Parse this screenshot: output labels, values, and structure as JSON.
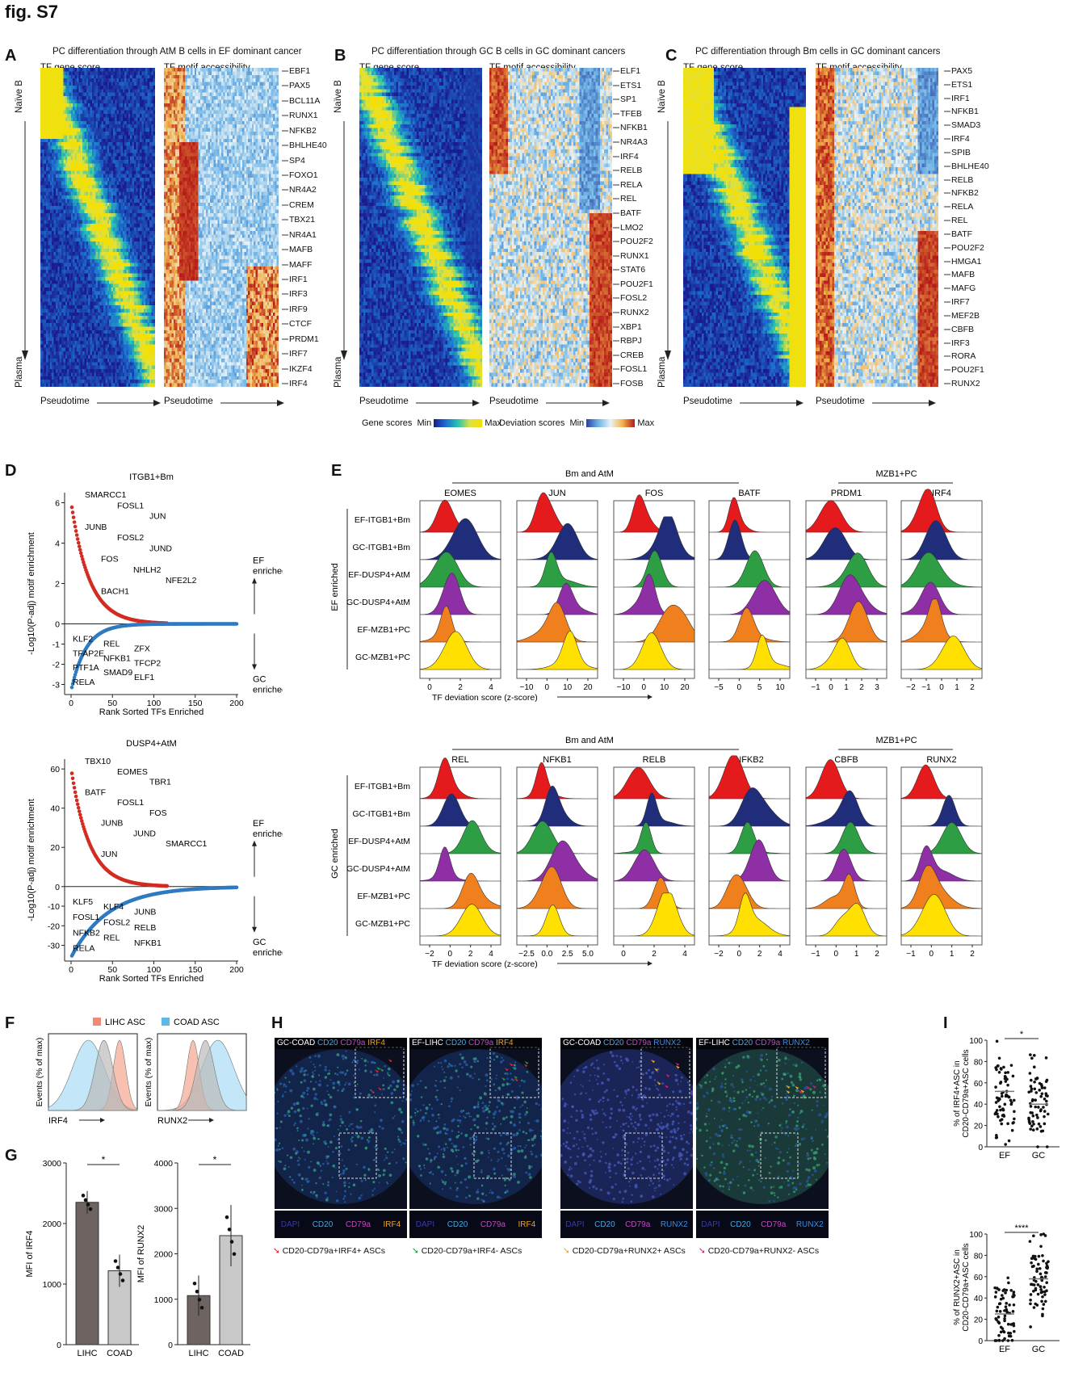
{
  "figure_label": "fig. S7",
  "panelA": {
    "letter": "A",
    "title": "PC differentiation through AtM B cells in EF dominant cancer",
    "left_header": "TF gene score",
    "right_header": "TF motif accessibility",
    "top_label": "Naïve B",
    "bottom_label": "Plasma",
    "x_label": "Pseudotime",
    "genes": [
      "EBF1",
      "PAX5",
      "BCL11A",
      "RUNX1",
      "NFKB2",
      "BHLHE40",
      "SP4",
      "FOXO1",
      "NR4A2",
      "CREM",
      "TBX21",
      "NR4A1",
      "MAFB",
      "MAFF",
      "IRF1",
      "IRF3",
      "IRF9",
      "CTCF",
      "PRDM1",
      "IRF7",
      "IKZF4",
      "IRF4"
    ]
  },
  "panelB": {
    "letter": "B",
    "title": "PC differentiation through GC B cells in GC dominant cancers",
    "left_header": "TF gene score",
    "right_header": "TF motif accessibility",
    "top_label": "Naïve B",
    "bottom_label": "Plasma",
    "x_label": "Pseudotime",
    "genes": [
      "ELF1",
      "ETS1",
      "SP1",
      "TFEB",
      "NFKB1",
      "NR4A3",
      "IRF4",
      "RELB",
      "RELA",
      "REL",
      "BATF",
      "LMO2",
      "POU2F2",
      "RUNX1",
      "STAT6",
      "POU2F1",
      "FOSL2",
      "RUNX2",
      "XBP1",
      "RBPJ",
      "CREB",
      "FOSL1",
      "FOSB"
    ],
    "legend_gene": "Gene scores",
    "legend_dev": "Deviation scores",
    "legend_min": "Min",
    "legend_max": "Max"
  },
  "panelC": {
    "letter": "C",
    "title": "PC differentiation through Bm cells in GC dominant cancers",
    "left_header": "TF gene score",
    "right_header": "TF motif accessibility",
    "top_label": "Naïve B",
    "bottom_label": "Plasma",
    "x_label": "Pseudotime",
    "genes": [
      "PAX5",
      "ETS1",
      "IRF1",
      "NFKB1",
      "SMAD3",
      "IRF4",
      "SPIB",
      "BHLHE40",
      "RELB",
      "NFKB2",
      "RELA",
      "REL",
      "BATF",
      "POU2F2",
      "HMGA1",
      "MAFB",
      "MAFG",
      "IRF7",
      "MEF2B",
      "CBFB",
      "IRF3",
      "RORA",
      "POU2F1",
      "RUNX2"
    ]
  },
  "panelD": {
    "letter": "D",
    "ylabel": "-Log10(P-adj) motif enrichment",
    "xlabel": "Rank Sorted TFs Enriched",
    "ef_label": "EF enriched",
    "gc_label": "GC enriched",
    "top": {
      "title": "ITGB1+Bm",
      "ylim": [
        -3.5,
        6.5
      ],
      "yticks": [
        "6",
        "4",
        "2",
        "0",
        "-1",
        "-2",
        "-3"
      ],
      "xticks": [
        "0",
        "50",
        "100",
        "150",
        "200"
      ],
      "up_labels": [
        "SMARCC1",
        "FOSL1",
        "JUN",
        "JUNB",
        "FOSL2",
        "JUND",
        "FOS",
        "NHLH2",
        "NFE2L2",
        "BACH1"
      ],
      "down_labels": [
        "KLF2",
        "REL",
        "ZFX",
        "TFAP2E",
        "NFKB1",
        "TFCP2",
        "PTF1A",
        "SMAD9",
        "ELF1",
        "RELA"
      ]
    },
    "bottom": {
      "title": "DUSP4+AtM",
      "ylim": [
        -38,
        65
      ],
      "yticks": [
        "60",
        "40",
        "20",
        "0",
        "-10",
        "-20",
        "-30"
      ],
      "xticks": [
        "0",
        "50",
        "100",
        "150",
        "200"
      ],
      "up_labels": [
        "TBX10",
        "EOMES",
        "TBR1",
        "BATF",
        "FOSL1",
        "FOS",
        "JUNB",
        "JUND",
        "SMARCC1",
        "JUN"
      ],
      "down_labels": [
        "KLF5",
        "KLF4",
        "JUNB",
        "FOSL1",
        "FOSL2",
        "RELB",
        "NFKB2",
        "REL",
        "NFKB1",
        "RELA"
      ]
    }
  },
  "panelE": {
    "letter": "E",
    "top_group1": "Bm and AtM",
    "top_group2": "MZB1+PC",
    "bottom_group1": "Bm and AtM",
    "bottom_group2": "MZB1+PC",
    "top_side_label": "EF enriched",
    "bottom_side_label": "GC enriched",
    "xlabel": "TF deviation score (z-score)",
    "rows": [
      "EF-ITGB1+Bm",
      "GC-ITGB1+Bm",
      "EF-DUSP4+AtM",
      "GC-DUSP4+AtM",
      "EF-MZB1+PC",
      "GC-MZB1+PC"
    ],
    "row_colors": [
      "#e41a1c",
      "#1f2d7a",
      "#2e9e44",
      "#8e2fa6",
      "#f07f1e",
      "#ffe000"
    ],
    "top_panels": [
      {
        "name": "EOMES",
        "ticks": [
          "0",
          "2",
          "4"
        ]
      },
      {
        "name": "JUN",
        "ticks": [
          "−10",
          "0",
          "10",
          "20"
        ]
      },
      {
        "name": "FOS",
        "ticks": [
          "−10",
          "0",
          "10",
          "20"
        ]
      },
      {
        "name": "BATF",
        "ticks": [
          "−5",
          "0",
          "5",
          "10"
        ]
      },
      {
        "name": "PRDM1",
        "ticks": [
          "−1",
          "0",
          "1",
          "2",
          "3"
        ]
      },
      {
        "name": "IRF4",
        "ticks": [
          "−2",
          "−1",
          "0",
          "1",
          "2"
        ]
      }
    ],
    "bottom_panels": [
      {
        "name": "REL",
        "ticks": [
          "−2",
          "0",
          "2",
          "4"
        ]
      },
      {
        "name": "NFKB1",
        "ticks": [
          "−2.5",
          "0.0",
          "2.5",
          "5.0"
        ]
      },
      {
        "name": "RELB",
        "ticks": [
          "0",
          "2",
          "4"
        ]
      },
      {
        "name": "NFKB2",
        "ticks": [
          "−2",
          "0",
          "2",
          "4"
        ]
      },
      {
        "name": "CBFB",
        "ticks": [
          "−1",
          "0",
          "1",
          "2"
        ]
      },
      {
        "name": "RUNX2",
        "ticks": [
          "−1",
          "0",
          "1",
          "2"
        ]
      }
    ]
  },
  "panelF": {
    "letter": "F",
    "legend1": "LIHC ASC",
    "legend2": "COAD ASC",
    "legend1_color": "#f08a74",
    "legend2_color": "#5fb8e8",
    "ylabel": "Events (% of max)",
    "x1": "IRF4",
    "x2": "RUNX2"
  },
  "panelG": {
    "letter": "G",
    "chart1": {
      "ylabel": "MFI of IRF4",
      "yticks": [
        "3000",
        "2000",
        "1000",
        "0"
      ],
      "categories": [
        "LIHC",
        "COAD"
      ],
      "values": [
        2350,
        1220
      ],
      "sig": "*"
    },
    "chart2": {
      "ylabel": "MFI of RUNX2",
      "yticks": [
        "4000",
        "3000",
        "2000",
        "1000",
        "0"
      ],
      "categories": [
        "LIHC",
        "COAD"
      ],
      "values": [
        1080,
        2400
      ],
      "sig": "*"
    }
  },
  "panelH": {
    "letter": "H",
    "images": [
      {
        "title_parts": [
          "GC-COAD",
          "CD20",
          "CD79a",
          "IRF4"
        ],
        "channels": [
          "DAPI",
          "CD20",
          "CD79a",
          "IRF4"
        ]
      },
      {
        "title_parts": [
          "EF-LIHC",
          "CD20",
          "CD79a",
          "IRF4"
        ],
        "channels": [
          "DAPI",
          "CD20",
          "CD79a",
          "IRF4"
        ]
      },
      {
        "title_parts": [
          "GC-COAD",
          "CD20",
          "CD79a",
          "RUNX2"
        ],
        "channels": [
          "DAPI",
          "CD20",
          "CD79a",
          "RUNX2"
        ]
      },
      {
        "title_parts": [
          "EF-LIHC",
          "CD20",
          "CD79a",
          "RUNX2"
        ],
        "channels": [
          "DAPI",
          "CD20",
          "CD79a",
          "RUNX2"
        ]
      }
    ],
    "arrow_legends": [
      {
        "text": "CD20-CD79a+IRF4+ ASCs",
        "color": "#e0202a"
      },
      {
        "text": "CD20-CD79a+IRF4- ASCs",
        "color": "#1a9e3a"
      },
      {
        "text": "CD20-CD79a+RUNX2+ ASCs",
        "color": "#f2a81d"
      },
      {
        "text": "CD20-CD79a+RUNX2- ASCs",
        "color": "#e0157e"
      }
    ]
  },
  "panelI": {
    "letter": "I",
    "top": {
      "ylabel": "% of IRF4+ASC in CD20-CD79a+ASC cells",
      "yticks": [
        "100",
        "80",
        "60",
        "40",
        "20",
        "0"
      ],
      "categories": [
        "EF",
        "GC"
      ],
      "sig": "*"
    },
    "bottom": {
      "ylabel": "% of RUNX2+ASC in CD20-CD79a+ASC cells",
      "yticks": [
        "100",
        "80",
        "60",
        "40",
        "20",
        "0"
      ],
      "categories": [
        "EF",
        "GC"
      ],
      "sig": "****"
    }
  }
}
